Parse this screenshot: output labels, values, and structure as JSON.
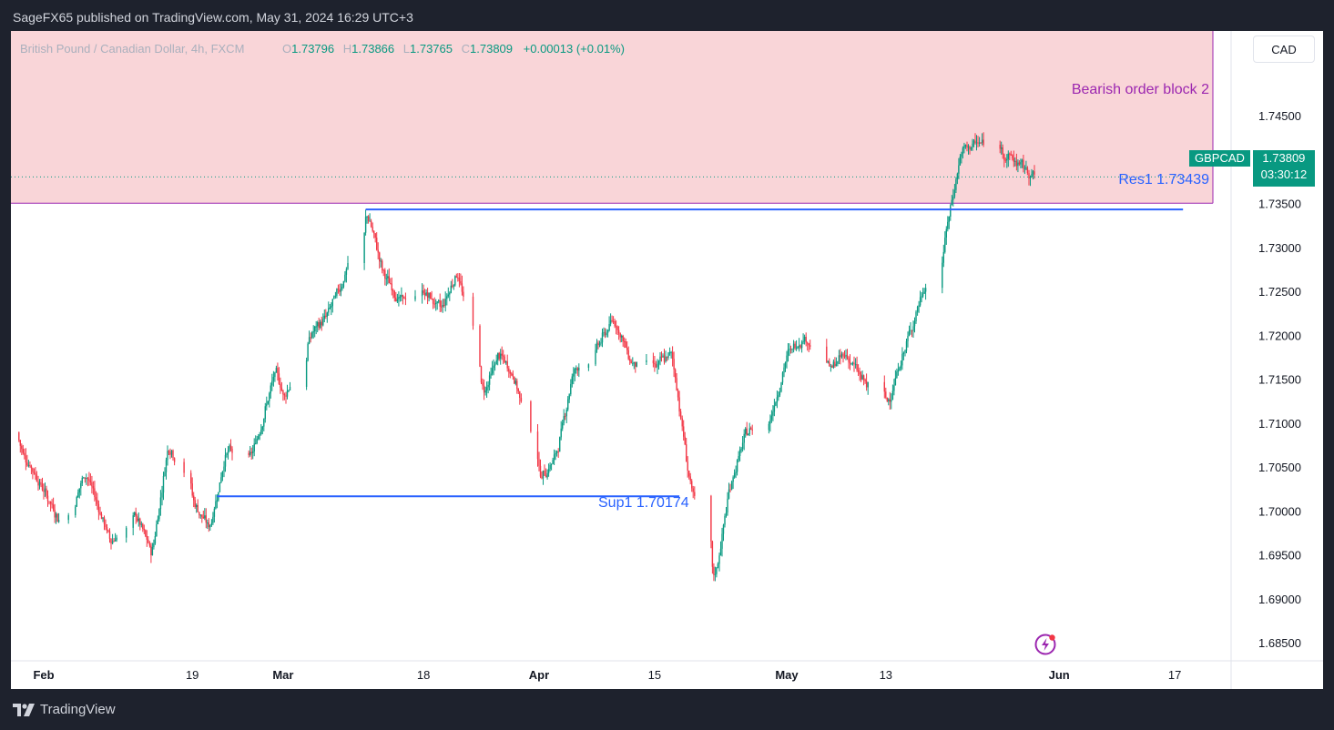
{
  "header": {
    "published_text": "SageFX65 published on TradingView.com, May 31, 2024 16:29 UTC+3"
  },
  "footer": {
    "brand_text": "TradingView"
  },
  "legend": {
    "symbol_desc": "British Pound / Canadian Dollar, 4h, FXCM",
    "o_label": "O",
    "o_value": "1.73796",
    "h_label": "H",
    "h_value": "1.73866",
    "l_label": "L",
    "l_value": "1.73765",
    "c_label": "C",
    "c_value": "1.73809",
    "change": "+0.00013 (+0.01%)"
  },
  "currency_button": "CAD",
  "price_tag": {
    "symbol": "GBPCAD",
    "price": "1.73809",
    "countdown": "03:30:12"
  },
  "annotations": {
    "order_block": "Bearish order block 2",
    "res1": "Res1 1.73439",
    "sup1": "Sup1 1.70174"
  },
  "colors": {
    "up": "#089981",
    "down": "#f23645",
    "zone_fill": "#f9d5d8",
    "zone_border": "#9c27b0",
    "level_line": "#2962ff",
    "order_block_text": "#9c27b0",
    "background_dark": "#1e222d"
  },
  "icons": [
    "tradingview-logo-icon",
    "flash-icon"
  ],
  "chart_data": {
    "type": "candlestick",
    "symbol": "GBPCAD",
    "timeframe": "4h",
    "ylim": [
      1.683,
      1.7545
    ],
    "y_ticks": [
      "1.74500",
      "1.74000",
      "1.73500",
      "1.73000",
      "1.72500",
      "1.72000",
      "1.71500",
      "1.71000",
      "1.70500",
      "1.70000",
      "1.69500",
      "1.69000",
      "1.68500"
    ],
    "x_ticks": [
      {
        "label": "Feb",
        "date": "2024-02-01",
        "bold": true
      },
      {
        "label": "19",
        "date": "2024-02-19",
        "bold": false
      },
      {
        "label": "Mar",
        "date": "2024-03-01",
        "bold": true
      },
      {
        "label": "18",
        "date": "2024-03-18",
        "bold": false
      },
      {
        "label": "Apr",
        "date": "2024-04-01",
        "bold": true
      },
      {
        "label": "15",
        "date": "2024-04-15",
        "bold": false
      },
      {
        "label": "May",
        "date": "2024-05-01",
        "bold": true
      },
      {
        "label": "13",
        "date": "2024-05-13",
        "bold": false
      },
      {
        "label": "Jun",
        "date": "2024-06-03",
        "bold": true
      },
      {
        "label": "17",
        "date": "2024-06-17",
        "bold": false
      }
    ],
    "zone": {
      "label": "Bearish order block 2",
      "y_low": 1.7351,
      "y_high": 1.7545
    },
    "levels": [
      {
        "name": "Res1",
        "value": 1.73439,
        "from": "2024-03-11",
        "to": "2024-06-18"
      },
      {
        "name": "Sup1",
        "value": 1.70174,
        "from": "2024-02-22",
        "to": "2024-04-18"
      }
    ],
    "last_price": 1.73809,
    "path": [
      [
        "2024-01-28",
        1.709
      ],
      [
        "2024-01-31",
        1.704
      ],
      [
        "2024-02-03",
        1.6985
      ],
      [
        "2024-02-06",
        1.7045
      ],
      [
        "2024-02-09",
        1.6965
      ],
      [
        "2024-02-12",
        1.6998
      ],
      [
        "2024-02-14",
        1.695
      ],
      [
        "2024-02-16",
        1.708
      ],
      [
        "2024-02-19",
        1.701
      ],
      [
        "2024-02-21",
        1.698
      ],
      [
        "2024-02-23",
        1.707
      ],
      [
        "2024-02-26",
        1.706
      ],
      [
        "2024-02-29",
        1.716
      ],
      [
        "2024-03-01",
        1.713
      ],
      [
        "2024-03-04",
        1.72
      ],
      [
        "2024-03-06",
        1.722
      ],
      [
        "2024-03-08",
        1.726
      ],
      [
        "2024-03-11",
        1.7345
      ],
      [
        "2024-03-13",
        1.727
      ],
      [
        "2024-03-15",
        1.724
      ],
      [
        "2024-03-18",
        1.725
      ],
      [
        "2024-03-20",
        1.723
      ],
      [
        "2024-03-22",
        1.7275
      ],
      [
        "2024-03-25",
        1.713
      ],
      [
        "2024-03-27",
        1.718
      ],
      [
        "2024-03-29",
        1.715
      ],
      [
        "2024-04-01",
        1.7035
      ],
      [
        "2024-04-03",
        1.7065
      ],
      [
        "2024-04-05",
        1.716
      ],
      [
        "2024-04-08",
        1.719
      ],
      [
        "2024-04-10",
        1.722
      ],
      [
        "2024-04-12",
        1.717
      ],
      [
        "2024-04-15",
        1.7165
      ],
      [
        "2024-04-17",
        1.718
      ],
      [
        "2024-04-18",
        1.711
      ],
      [
        "2024-04-19",
        1.704
      ],
      [
        "2024-04-22",
        1.691
      ],
      [
        "2024-04-24",
        1.703
      ],
      [
        "2024-04-26",
        1.709
      ],
      [
        "2024-04-29",
        1.711
      ],
      [
        "2024-05-01",
        1.718
      ],
      [
        "2024-05-03",
        1.72
      ],
      [
        "2024-05-06",
        1.716
      ],
      [
        "2024-05-08",
        1.718
      ],
      [
        "2024-05-10",
        1.715
      ],
      [
        "2024-05-13",
        1.712
      ],
      [
        "2024-05-15",
        1.718
      ],
      [
        "2024-05-17",
        1.724
      ],
      [
        "2024-05-20",
        1.731
      ],
      [
        "2024-05-22",
        1.741
      ],
      [
        "2024-05-24",
        1.742
      ],
      [
        "2024-05-27",
        1.741
      ],
      [
        "2024-05-29",
        1.7395
      ],
      [
        "2024-05-31",
        1.73809
      ]
    ]
  }
}
